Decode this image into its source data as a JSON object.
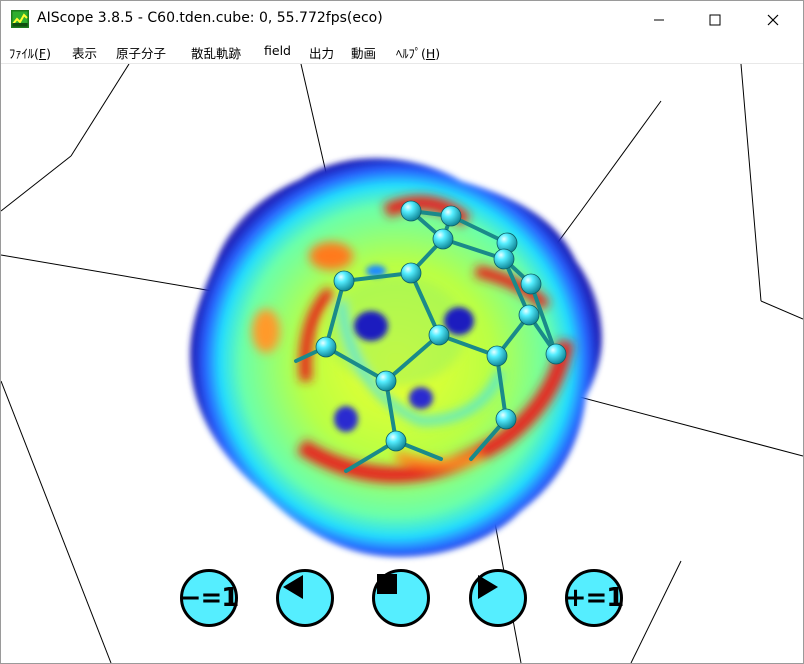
{
  "window": {
    "title": "AIScope 3.8.5 - C60.tden.cube: 0, 55.772fps(eco)",
    "controls": [
      "minimize",
      "maximize",
      "close"
    ]
  },
  "menu": {
    "file_label": "ﾌｧｲﾙ(",
    "file_accel": "F",
    "file_close": ")",
    "view_label": "表示",
    "molecule_label": "原子分子",
    "scatter_label": "散乱軌跡",
    "field_label": "field",
    "output_label": "出力",
    "video_label": "動画",
    "help_label": "ﾍﾙﾌﾟ(",
    "help_accel": "H",
    "help_close": ")"
  },
  "playback": {
    "minus_label": "−=1",
    "plus_label": "+=1",
    "prev_icon": "triangle-left-icon",
    "stop_icon": "square-stop-icon",
    "play_icon": "triangle-right-icon"
  },
  "colors": {
    "button_fill": "#55eeff",
    "atom": "#2fd3dd",
    "bond": "#1a8a8a",
    "density_high": "#d81a10",
    "density_low": "#1a1ab4"
  }
}
